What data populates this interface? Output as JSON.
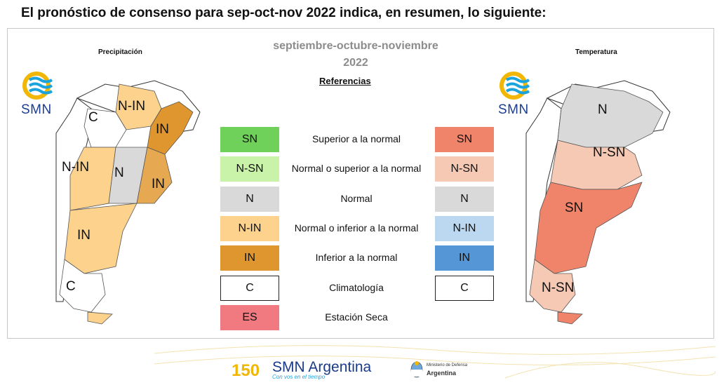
{
  "headline": "El pronóstico de consenso para  sep-oct-nov 2022 indica, en resumen, lo siguiente:",
  "period": {
    "line1": "septiembre-octubre-noviembre",
    "line2": "2022"
  },
  "maps": {
    "precip": {
      "title": "Precipitación",
      "labels": [
        "N-IN",
        "C",
        "IN",
        "N-IN",
        "N",
        "IN",
        "IN",
        "C"
      ]
    },
    "temp": {
      "title": "Temperatura",
      "labels": [
        "N",
        "N-SN",
        "SN",
        "N-SN"
      ]
    }
  },
  "logo_text": "SMN",
  "references": {
    "title": "Referencias",
    "rows": [
      {
        "code": "SN",
        "desc": "Superior a la normal",
        "precip_color": "#6fd05a",
        "temp_code": "SN",
        "temp_color": "#f0846a"
      },
      {
        "code": "N-SN",
        "desc": "Normal o superior a la normal",
        "precip_color": "#c9f3a8",
        "temp_code": "N-SN",
        "temp_color": "#f6c9b5"
      },
      {
        "code": "N",
        "desc": "Normal",
        "precip_color": "#d9d9d9",
        "temp_code": "N",
        "temp_color": "#d9d9d9"
      },
      {
        "code": "N-IN",
        "desc": "Normal o inferior a la normal",
        "precip_color": "#fcd28c",
        "temp_code": "N-IN",
        "temp_color": "#bcd8f0"
      },
      {
        "code": "IN",
        "desc": "Inferior a la normal",
        "precip_color": "#e0962e",
        "temp_code": "IN",
        "temp_color": "#5596d6"
      },
      {
        "code": "C",
        "desc": "Climatología",
        "precip_color": "#ffffff",
        "temp_code": "C",
        "temp_color": "#ffffff"
      },
      {
        "code": "ES",
        "desc": "Estación Seca",
        "precip_color": "#f07a80"
      }
    ]
  },
  "footer": {
    "brand": "SMN Argentina",
    "tagline": "Con vos en el tiempo",
    "badge": "150",
    "ministry_line1": "Ministerio de Defensa",
    "ministry_line2": "Argentina"
  }
}
